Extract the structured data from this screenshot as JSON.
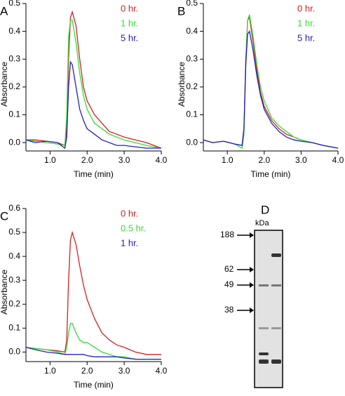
{
  "chart_data": [
    {
      "type": "line",
      "label": "A",
      "ylabel": "Absorbance",
      "xlabel": "Time (min)",
      "xlim": [
        0.35,
        4.0
      ],
      "ylim": [
        -0.03,
        0.5
      ],
      "xticks": [
        {
          "value": 1,
          "label": "1.0"
        },
        {
          "value": 2,
          "label": "2.0"
        },
        {
          "value": 3,
          "label": "3.0"
        },
        {
          "value": 4,
          "label": "4.0"
        }
      ],
      "yticks": [
        {
          "value": 0,
          "label": "0.0"
        },
        0.1,
        0.2,
        0.3,
        0.4,
        0.5
      ],
      "x": [
        0.35,
        0.6,
        0.9,
        1.2,
        1.4,
        1.45,
        1.5,
        1.55,
        1.6,
        1.7,
        1.8,
        1.9,
        2.0,
        2.2,
        2.4,
        2.6,
        2.8,
        3.0,
        3.3,
        3.6,
        4.0
      ],
      "series": [
        {
          "name": "0 hr.",
          "color": "#d42020",
          "values": [
            0.01,
            0.01,
            0.005,
            0.0,
            -0.01,
            0.05,
            0.3,
            0.45,
            0.47,
            0.42,
            0.3,
            0.2,
            0.15,
            0.1,
            0.07,
            0.04,
            0.03,
            0.02,
            0.01,
            0.0,
            -0.02
          ]
        },
        {
          "name": "1 hr.",
          "color": "#33dd33",
          "values": [
            0.01,
            0.005,
            0.0,
            -0.005,
            -0.01,
            0.1,
            0.38,
            0.44,
            0.44,
            0.36,
            0.25,
            0.17,
            0.12,
            0.07,
            0.05,
            0.03,
            0.02,
            0.01,
            0.0,
            -0.01,
            -0.02
          ]
        },
        {
          "name": "5 hr.",
          "color": "#2020c0",
          "values": [
            0.01,
            0.0,
            0.005,
            0.0,
            -0.02,
            0.02,
            0.2,
            0.29,
            0.28,
            0.2,
            0.12,
            0.08,
            0.05,
            0.03,
            0.01,
            0.0,
            -0.01,
            -0.01,
            -0.015,
            -0.02,
            -0.02
          ]
        }
      ]
    },
    {
      "type": "line",
      "label": "B",
      "ylabel": "Absorbance",
      "xlabel": "Time (min)",
      "xlim": [
        0.35,
        4.0
      ],
      "ylim": [
        -0.03,
        0.5
      ],
      "xticks": [
        {
          "value": 1,
          "label": "1.0"
        },
        {
          "value": 2,
          "label": "2.0"
        },
        {
          "value": 3,
          "label": "3.0"
        },
        {
          "value": 4,
          "label": "4.0"
        }
      ],
      "yticks": [
        {
          "value": 0,
          "label": "0.0"
        },
        0.1,
        0.2,
        0.3,
        0.4,
        0.5
      ],
      "x": [
        0.35,
        0.6,
        0.9,
        1.2,
        1.4,
        1.45,
        1.5,
        1.55,
        1.6,
        1.7,
        1.8,
        1.9,
        2.0,
        2.2,
        2.4,
        2.6,
        2.8,
        3.0,
        3.3,
        3.6,
        4.0
      ],
      "series": [
        {
          "name": "0 hr.",
          "color": "#d42020",
          "values": [
            0.01,
            0.0,
            0.005,
            -0.005,
            -0.01,
            0.05,
            0.3,
            0.44,
            0.45,
            0.36,
            0.26,
            0.18,
            0.13,
            0.08,
            0.05,
            0.03,
            0.02,
            0.01,
            0.0,
            -0.01,
            -0.02
          ]
        },
        {
          "name": "1 hr.",
          "color": "#33dd33",
          "values": [
            0.01,
            0.0,
            0.005,
            -0.005,
            -0.02,
            0.03,
            0.28,
            0.44,
            0.46,
            0.38,
            0.28,
            0.2,
            0.15,
            0.09,
            0.06,
            0.04,
            0.02,
            0.01,
            0.0,
            -0.01,
            -0.02
          ]
        },
        {
          "name": "5 hr.",
          "color": "#2020c0",
          "values": [
            0.01,
            0.0,
            0.005,
            -0.005,
            -0.01,
            0.05,
            0.28,
            0.39,
            0.4,
            0.33,
            0.24,
            0.17,
            0.12,
            0.07,
            0.04,
            0.02,
            0.01,
            0.005,
            0.0,
            -0.01,
            -0.02
          ]
        }
      ]
    },
    {
      "type": "line",
      "label": "C",
      "ylabel": "Absorbance",
      "xlabel": "Time (min)",
      "xlim": [
        0.35,
        4.0
      ],
      "ylim": [
        -0.04,
        0.6
      ],
      "xticks": [
        {
          "value": 1,
          "label": "1.0"
        },
        {
          "value": 2,
          "label": "2.0"
        },
        {
          "value": 3,
          "label": "3.0"
        },
        {
          "value": 4,
          "label": "4.0"
        }
      ],
      "yticks": [
        {
          "value": 0,
          "label": "0.0"
        },
        0.1,
        0.2,
        0.3,
        0.4,
        0.5,
        0.6
      ],
      "x": [
        0.35,
        0.6,
        0.9,
        1.2,
        1.4,
        1.45,
        1.5,
        1.55,
        1.6,
        1.7,
        1.8,
        1.9,
        2.0,
        2.2,
        2.4,
        2.6,
        2.8,
        3.0,
        3.3,
        3.6,
        4.0
      ],
      "series": [
        {
          "name": "0 hr.",
          "color": "#d42020",
          "values": [
            0.02,
            0.015,
            0.01,
            0.005,
            0.0,
            0.05,
            0.3,
            0.47,
            0.5,
            0.45,
            0.36,
            0.28,
            0.22,
            0.14,
            0.08,
            0.05,
            0.03,
            0.02,
            0.0,
            -0.01,
            -0.01
          ]
        },
        {
          "name": "0.5 hr.",
          "color": "#33dd33",
          "values": [
            0.02,
            0.015,
            0.01,
            0.0,
            -0.01,
            0.02,
            0.08,
            0.12,
            0.12,
            0.08,
            0.05,
            0.04,
            0.04,
            0.02,
            0.0,
            -0.01,
            -0.02,
            -0.02,
            -0.03,
            -0.03,
            -0.03
          ]
        },
        {
          "name": "1 hr.",
          "color": "#2020c0",
          "values": [
            0.02,
            0.01,
            0.0,
            -0.005,
            -0.01,
            -0.01,
            -0.01,
            -0.01,
            -0.01,
            -0.01,
            -0.01,
            -0.01,
            -0.015,
            -0.02,
            -0.02,
            -0.02,
            -0.02,
            -0.025,
            -0.03,
            -0.03,
            -0.03
          ]
        }
      ]
    }
  ],
  "gel": {
    "label": "D",
    "unit": "kDa",
    "markers": [
      "188",
      "62",
      "49",
      "38"
    ]
  }
}
